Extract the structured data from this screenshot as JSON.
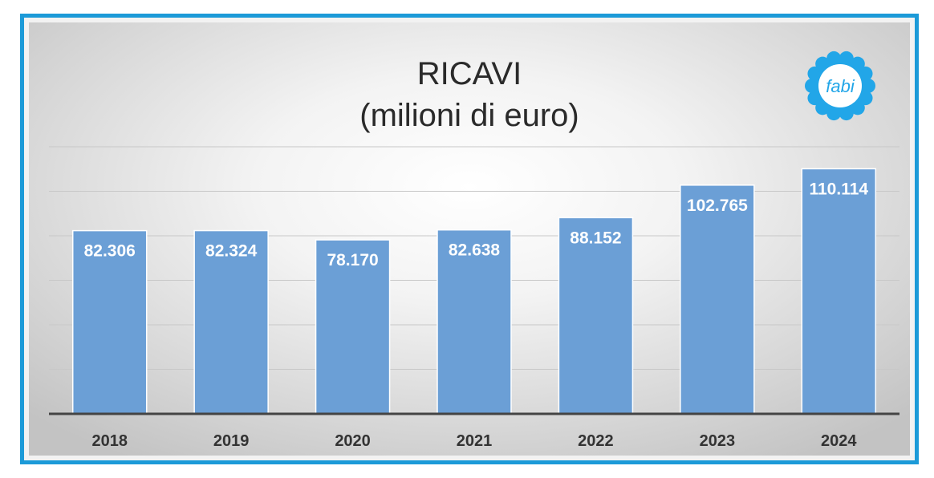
{
  "title_line1": "RICAVI",
  "title_line2": "(milioni di euro)",
  "logo_text": "fabi",
  "colors": {
    "frame": "#1c9ad8",
    "bar": "#6b9fd6",
    "logo": "#22a6e8",
    "axis": "#444444",
    "grid": "#c8c8c8"
  },
  "chart_data": {
    "type": "bar",
    "categories": [
      "2018",
      "2019",
      "2020",
      "2021",
      "2022",
      "2023",
      "2024"
    ],
    "values": [
      82306,
      82324,
      78170,
      82638,
      88152,
      102765,
      110114
    ],
    "data_labels": [
      "82.306",
      "82.324",
      "78.170",
      "82.638",
      "88.152",
      "102.765",
      "110.114"
    ],
    "ylim": [
      0,
      120000
    ],
    "grid": true,
    "legend": "none",
    "xlabel": "",
    "ylabel": ""
  }
}
